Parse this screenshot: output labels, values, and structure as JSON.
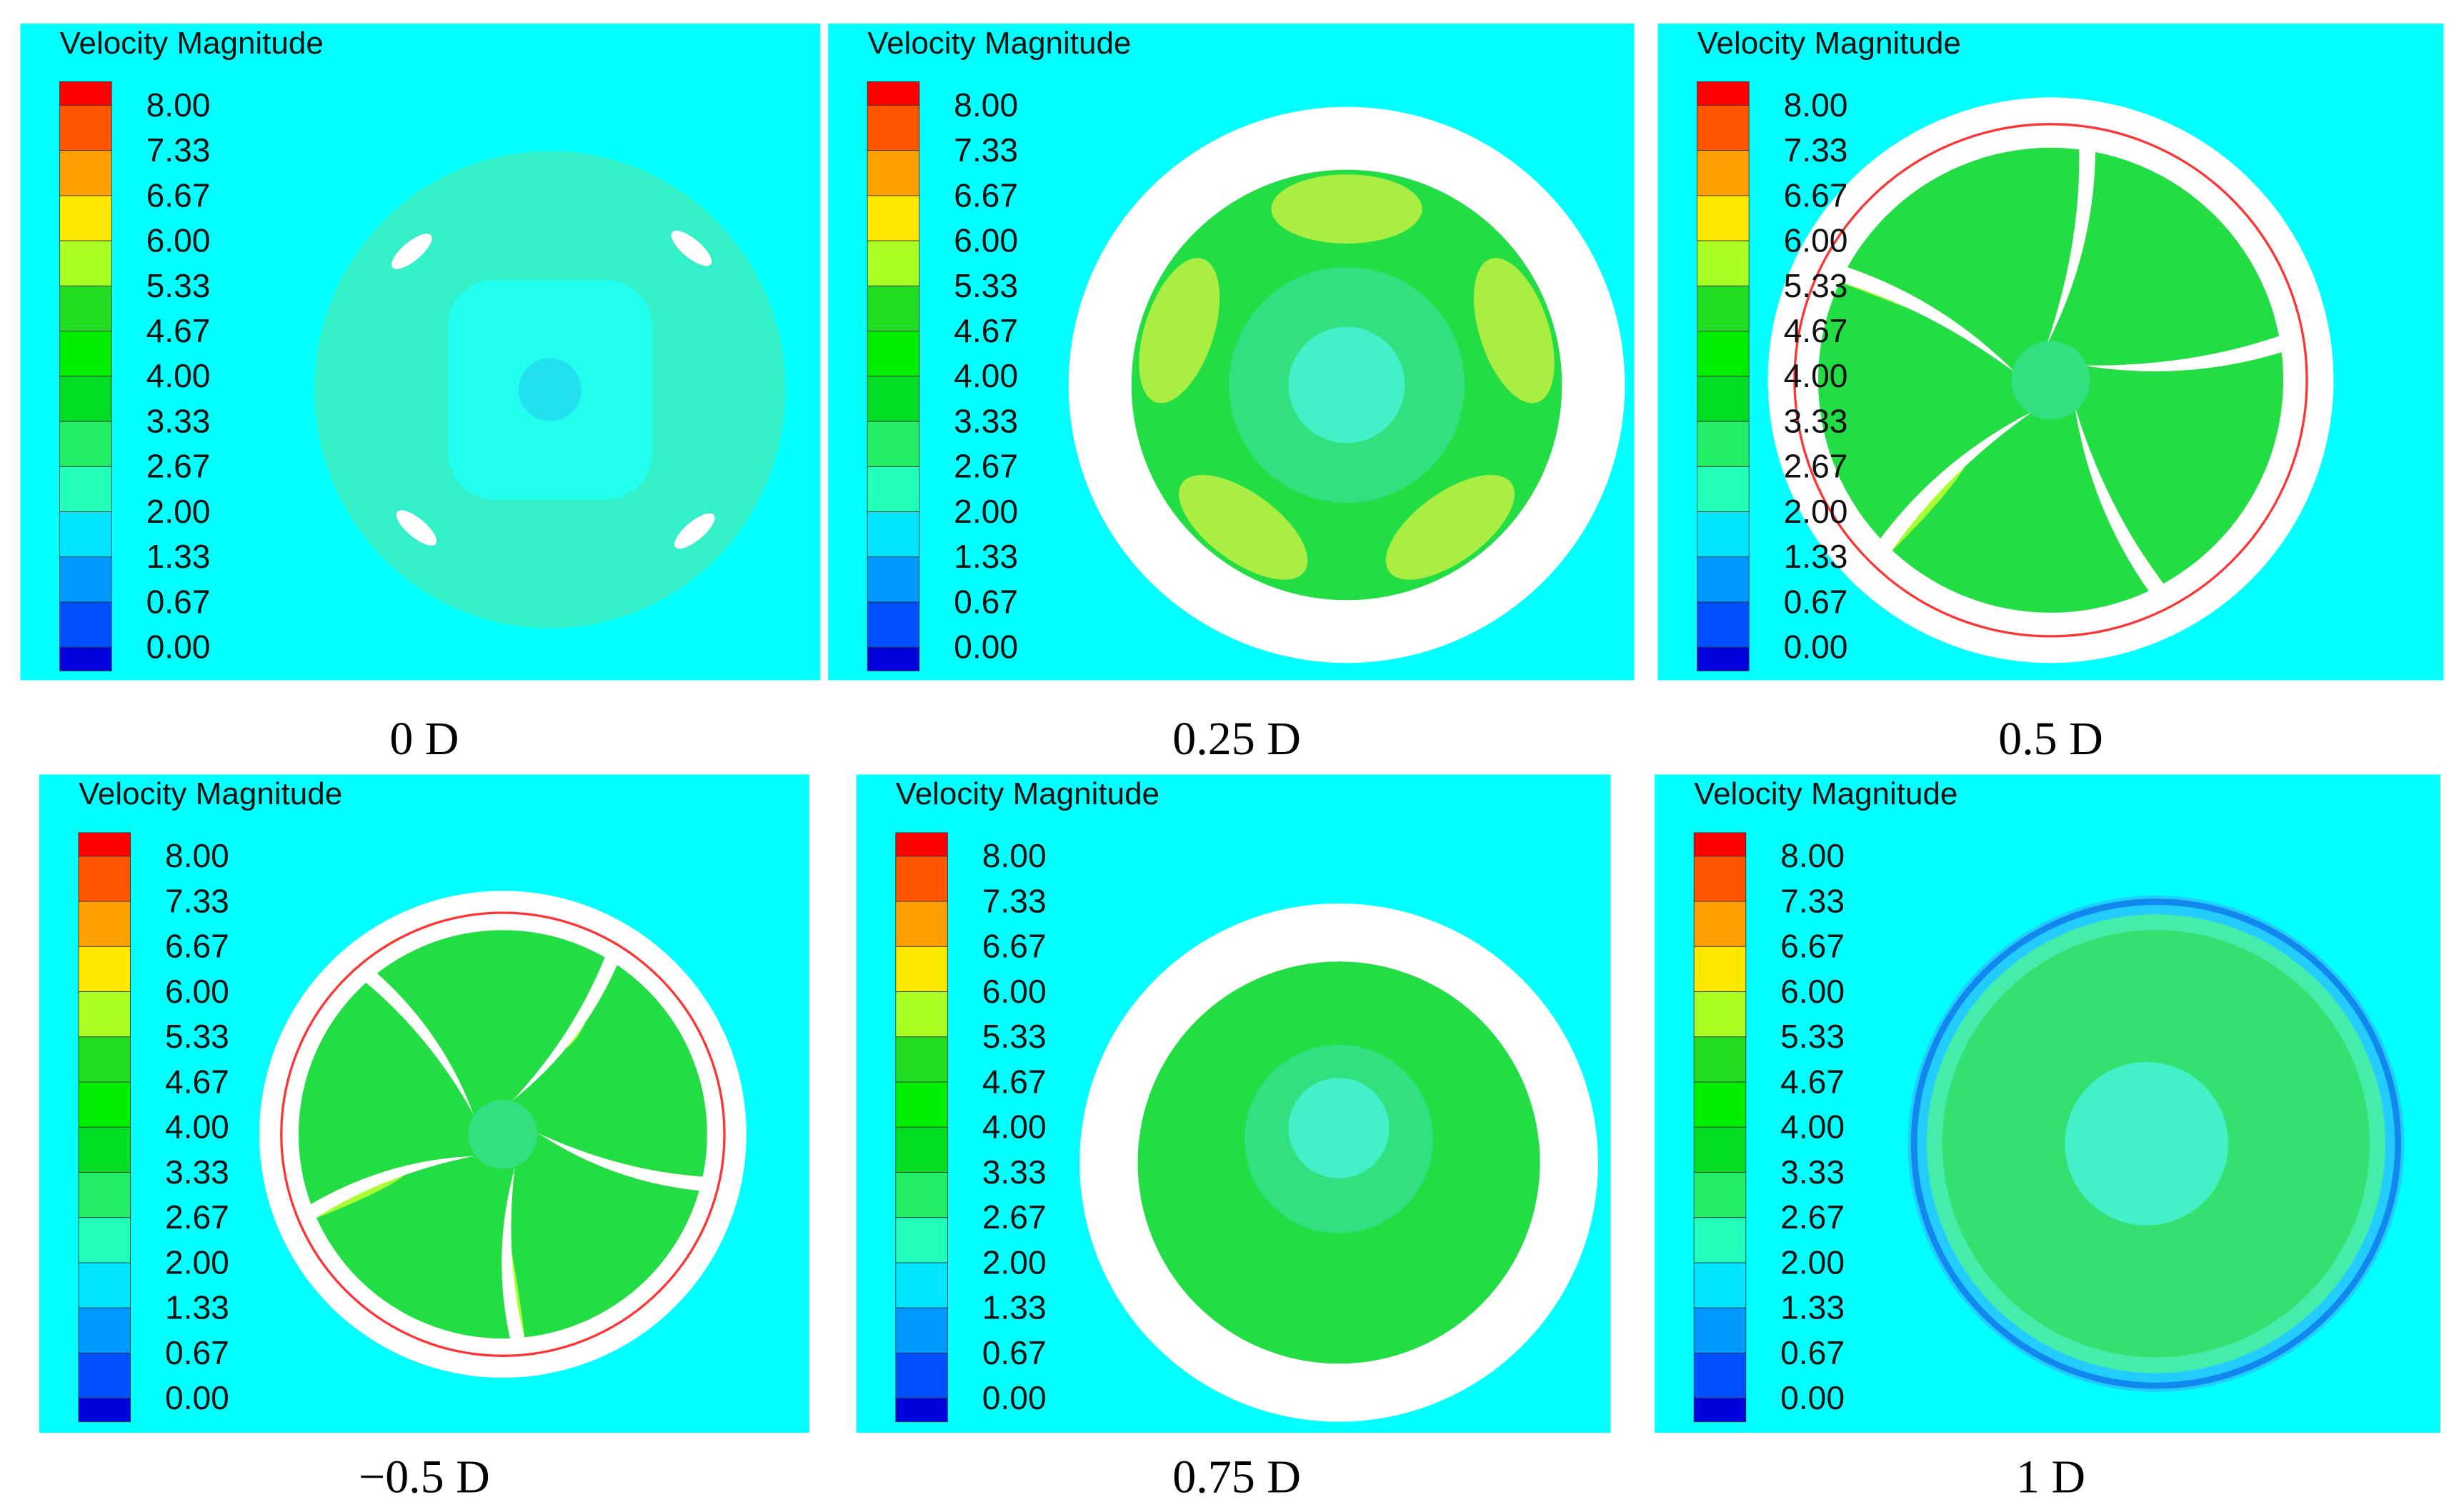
{
  "panels": [
    {
      "caption": "0 D",
      "legend_title": "Velocity Magnitude",
      "legend_labels": [
        "8.00",
        "7.33",
        "6.67",
        "6.00",
        "5.33",
        "4.67",
        "4.00",
        "3.33",
        "2.67",
        "2.00",
        "1.33",
        "0.67",
        "0.00"
      ]
    },
    {
      "caption": "0.25 D",
      "legend_title": "Velocity Magnitude",
      "legend_labels": [
        "8.00",
        "7.33",
        "6.67",
        "6.00",
        "5.33",
        "4.67",
        "4.00",
        "3.33",
        "2.67",
        "2.00",
        "1.33",
        "0.67",
        "0.00"
      ]
    },
    {
      "caption": "0.5 D",
      "legend_title": "Velocity Magnitude",
      "legend_labels": [
        "8.00",
        "7.33",
        "6.67",
        "6.00",
        "5.33",
        "4.67",
        "4.00",
        "3.33",
        "2.67",
        "2.00",
        "1.33",
        "0.67",
        "0.00"
      ]
    },
    {
      "caption": "−0.5 D",
      "legend_title": "Velocity Magnitude",
      "legend_labels": [
        "8.00",
        "7.33",
        "6.67",
        "6.00",
        "5.33",
        "4.67",
        "4.00",
        "3.33",
        "2.67",
        "2.00",
        "1.33",
        "0.67",
        "0.00"
      ]
    },
    {
      "caption": "0.75 D",
      "legend_title": "Velocity Magnitude",
      "legend_labels": [
        "8.00",
        "7.33",
        "6.67",
        "6.00",
        "5.33",
        "4.67",
        "4.00",
        "3.33",
        "2.67",
        "2.00",
        "1.33",
        "0.67",
        "0.00"
      ]
    },
    {
      "caption": "1 D",
      "legend_title": "Velocity Magnitude",
      "legend_labels": [
        "8.00",
        "7.33",
        "6.67",
        "6.00",
        "5.33",
        "4.67",
        "4.00",
        "3.33",
        "2.67",
        "2.00",
        "1.33",
        "0.67",
        "0.00"
      ]
    }
  ]
}
